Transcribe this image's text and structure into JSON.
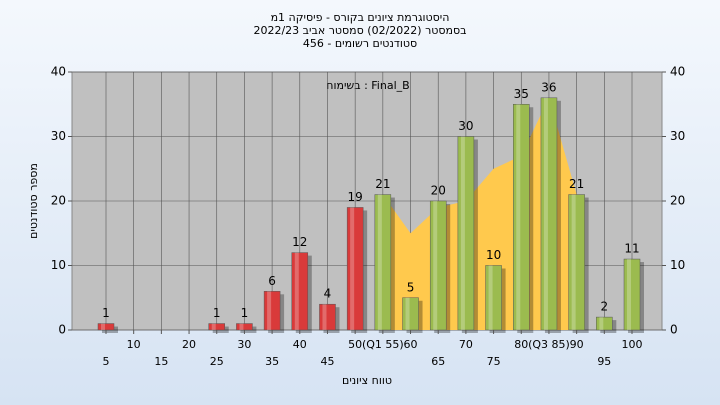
{
  "chart_data": {
    "type": "bar",
    "title": "היסטוגרמת ציונים בקורס - פיסיקה 1מ",
    "subtitle": "בסמסטר  (02/2022)  סמסטר אביב 2022/23",
    "subtitle2": "סטודנטים רשומים - 456",
    "annotation": "בשימוח : Final_B",
    "x_label": "טווח ציונים",
    "y_label": "מספר סטודנטים",
    "categories": [
      "5",
      "10",
      "15",
      "20",
      "25",
      "30",
      "35",
      "40",
      "45",
      "50",
      "(Q1 55)",
      "60",
      "65",
      "70",
      "75",
      "80",
      "(Q3 85)",
      "90",
      "95",
      "100"
    ],
    "values": [
      1,
      0,
      0,
      0,
      1,
      1,
      6,
      12,
      4,
      19,
      21,
      5,
      20,
      30,
      10,
      35,
      36,
      21,
      2,
      11
    ],
    "colors": [
      "#d93a3a",
      "#d93a3a",
      "#d93a3a",
      "#d93a3a",
      "#d93a3a",
      "#d93a3a",
      "#d93a3a",
      "#d93a3a",
      "#d93a3a",
      "#d93a3a",
      "#9bbb4f",
      "#9bbb4f",
      "#9bbb4f",
      "#9bbb4f",
      "#9bbb4f",
      "#9bbb4f",
      "#9bbb4f",
      "#9bbb4f",
      "#9bbb4f",
      "#9bbb4f"
    ],
    "area": {
      "color": "#ffc94d",
      "values": [
        null,
        null,
        null,
        null,
        null,
        null,
        null,
        null,
        null,
        null,
        21,
        15,
        19,
        20,
        25,
        27,
        36,
        21,
        null,
        null
      ]
    },
    "ylim": [
      0,
      40
    ],
    "yticks": [
      0,
      10,
      20,
      30,
      40
    ],
    "y2lim": [
      0,
      40
    ],
    "y2ticks": [
      0,
      10,
      20,
      30,
      40
    ],
    "grid": true
  }
}
